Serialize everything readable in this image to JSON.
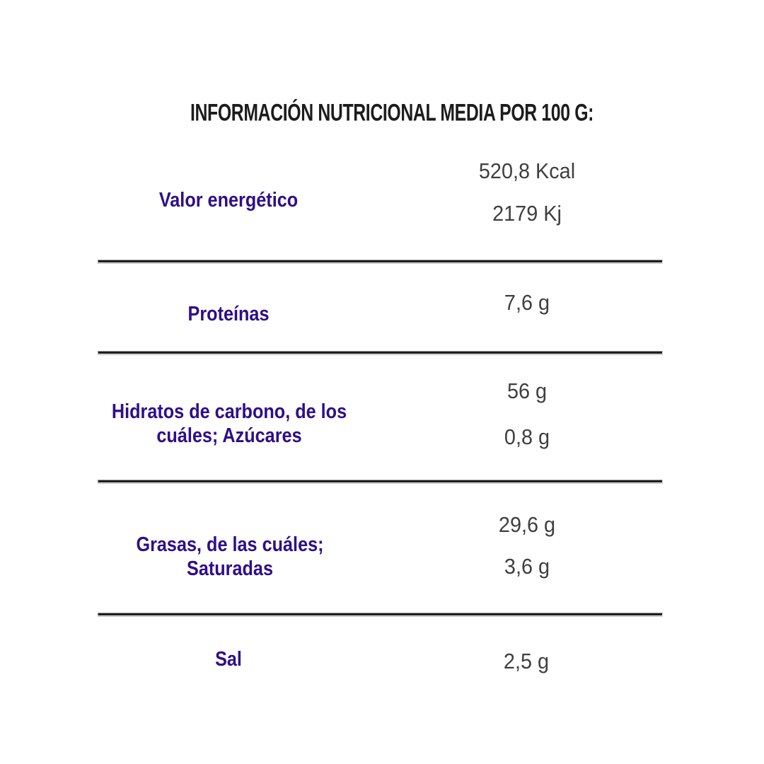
{
  "page": {
    "title": "INFORMACIÓN NUTRICIONAL MEDIA POR 100 G:",
    "background": "#ffffff"
  },
  "colors": {
    "title_text": "#1c1c1c",
    "label_text": "#2e0e8a",
    "value_text": "#3f3f3f",
    "divider": "#1f1f1f"
  },
  "table": {
    "rows": [
      {
        "label_lines": [
          "Valor energético"
        ],
        "values": [
          "520,8 Kcal",
          "2179 Kj"
        ]
      },
      {
        "label_lines": [
          "Proteínas"
        ],
        "values": [
          "7,6 g"
        ]
      },
      {
        "label_lines": [
          "Hidratos de carbono, de los",
          "cuáles; Azúcares"
        ],
        "values": [
          "56 g",
          "0,8 g"
        ]
      },
      {
        "label_lines": [
          "Grasas, de las cuáles;",
          "Saturadas"
        ],
        "values": [
          "29,6 g",
          "3,6 g"
        ]
      },
      {
        "label_lines": [
          "Sal"
        ],
        "values": [
          "2,5 g"
        ]
      }
    ]
  }
}
